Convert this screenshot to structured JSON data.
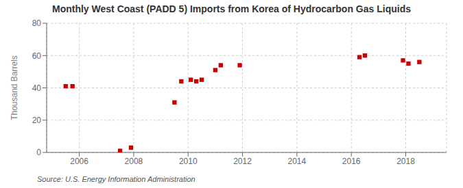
{
  "chart_data": {
    "type": "scatter",
    "title": "Monthly West Coast (PADD 5) Imports from Korea of Hydrocarbon Gas Liquids",
    "ylabel": "Thousand Barrels",
    "source": "Source: U.S. Energy Information Administration",
    "x": [
      2005.5,
      2005.75,
      2007.5,
      2007.9,
      2009.5,
      2009.75,
      2010.1,
      2010.3,
      2010.5,
      2011.0,
      2011.2,
      2011.9,
      2016.3,
      2016.5,
      2017.9,
      2018.1,
      2018.5
    ],
    "values": [
      41,
      41,
      1,
      3,
      31,
      44,
      45,
      44,
      45,
      51,
      54,
      54,
      59,
      60,
      57,
      55,
      56
    ],
    "color": "#cc0000",
    "marker": "square",
    "xlim": [
      2004.8,
      2019.5
    ],
    "ylim": [
      0,
      80
    ],
    "xticks": [
      2006,
      2008,
      2010,
      2012,
      2014,
      2016,
      2018
    ],
    "yticks": [
      0,
      20,
      40,
      60,
      80
    ],
    "grid": true
  }
}
